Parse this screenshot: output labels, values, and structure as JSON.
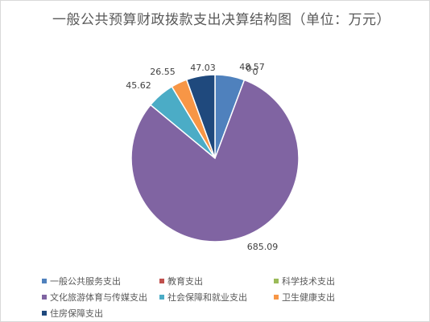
{
  "chart_data": {
    "type": "pie",
    "title": "一般公共预算财政拨款支出决算结构图（单位：万元）",
    "categories": [
      "一般公共服务支出",
      "教育支出",
      "科学技术支出",
      "文化旅游体育与传媒支出",
      "社会保障和就业支出",
      "卫生健康支出",
      "住房保障支出"
    ],
    "values": [
      48.57,
      0,
      0,
      685.09,
      45.62,
      26.55,
      47.03
    ],
    "data_labels": [
      "48.57",
      "0",
      "0",
      "685.09",
      "45.62",
      "26.55",
      "47.03"
    ],
    "colors": [
      "#4f81bd",
      "#c0504d",
      "#9bbb59",
      "#8064a2",
      "#4bacc6",
      "#f79646",
      "#1f497d"
    ],
    "legend": "bottom"
  }
}
